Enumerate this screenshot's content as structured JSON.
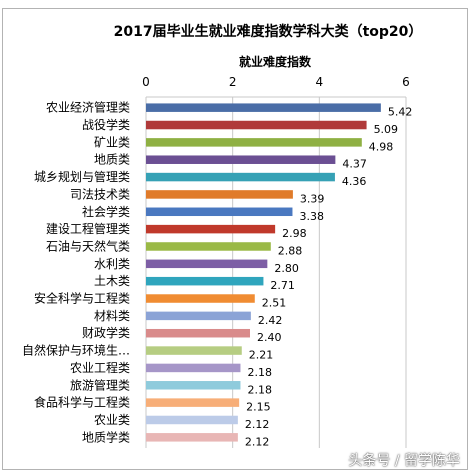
{
  "chart_data": {
    "type": "bar",
    "orientation": "horizontal",
    "title": "2017届毕业生就业难度指数学科大类（top20）",
    "axis_label": "就业难度指数",
    "axis_position": "top",
    "xlim": [
      0,
      6
    ],
    "ticks": [
      "0",
      "2",
      "4",
      "6"
    ],
    "tick_values": [
      0,
      2,
      4,
      6
    ],
    "grid": true,
    "categories": [
      "农业经济管理类",
      "战役学类",
      "矿业类",
      "地质类",
      "城乡规划与管理类",
      "司法技术类",
      "社会学类",
      "建设工程管理类",
      "石油与天然气类",
      "水利类",
      "土木类",
      "安全科学与工程类",
      "材料类",
      "财政学类",
      "自然保护与环境生…",
      "农业工程类",
      "旅游管理类",
      "食品科学与工程类",
      "农业类",
      "地质学类"
    ],
    "values": [
      5.42,
      5.09,
      4.98,
      4.37,
      4.36,
      3.39,
      3.38,
      2.98,
      2.88,
      2.8,
      2.71,
      2.51,
      2.42,
      2.4,
      2.21,
      2.18,
      2.18,
      2.15,
      2.12,
      2.12
    ],
    "value_labels": [
      "5.42",
      "5.09",
      "4.98",
      "4.37",
      "4.36",
      "3.39",
      "3.38",
      "2.98",
      "2.88",
      "2.80",
      "2.71",
      "2.51",
      "2.42",
      "2.40",
      "2.21",
      "2.18",
      "2.18",
      "2.15",
      "2.12",
      "2.12"
    ],
    "colors": [
      "#4a6da7",
      "#b03a3a",
      "#8fb043",
      "#6b4f93",
      "#36a1b5",
      "#e07b2a",
      "#4a78c0",
      "#c0392b",
      "#9ab946",
      "#7d5ea5",
      "#2fa5bd",
      "#f08c32",
      "#8ba3d6",
      "#d98b8b",
      "#b6cd82",
      "#a696c8",
      "#8fcbdc",
      "#f7ae78",
      "#bccbe8",
      "#e8b6b5"
    ]
  },
  "watermark": "头条号 / 留学陈华"
}
